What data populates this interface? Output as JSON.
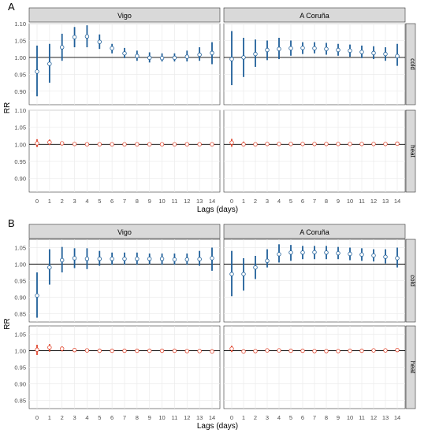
{
  "colors": {
    "cold": "#1f5f99",
    "heat": "#e0472f",
    "strip": "#d9d9d9",
    "grid": "#ebebeb",
    "ref": "#000000"
  },
  "labels": {
    "y_title": "RR",
    "x_title": "Lags (days)"
  },
  "chart_data": [
    {
      "type": "scatter",
      "panel_label": "A",
      "cities": [
        "Vigo",
        "A Coruña"
      ],
      "rows": [
        "cold",
        "heat"
      ],
      "xlabel": "Lags (days)",
      "ylabel": "RR",
      "x": [
        0,
        1,
        2,
        3,
        4,
        5,
        6,
        7,
        8,
        9,
        10,
        11,
        12,
        13,
        14
      ],
      "reference_line": 1.0,
      "grid": true,
      "ylim": [
        0.86,
        1.1
      ],
      "yticks": [
        0.9,
        0.95,
        1.0,
        1.05,
        1.1
      ],
      "ytick_labels": [
        "0.90",
        "0.95",
        "1.00",
        "1.05",
        "1.10"
      ],
      "series": [
        {
          "city": "Vigo",
          "row": "cold",
          "color": "cold",
          "rr": [
            0.958,
            0.981,
            1.03,
            1.06,
            1.062,
            1.046,
            1.027,
            1.012,
            1.004,
            0.999,
            0.998,
            0.999,
            1.002,
            1.008,
            1.013
          ],
          "low": [
            0.885,
            0.925,
            0.99,
            1.03,
            1.03,
            1.025,
            1.012,
            0.998,
            0.99,
            0.985,
            0.988,
            0.988,
            0.988,
            0.99,
            0.98
          ],
          "high": [
            1.035,
            1.04,
            1.07,
            1.09,
            1.095,
            1.068,
            1.04,
            1.028,
            1.02,
            1.015,
            1.012,
            1.012,
            1.02,
            1.03,
            1.045
          ]
        },
        {
          "city": "A Coruña",
          "row": "cold",
          "color": "cold",
          "rr": [
            0.995,
            1.0,
            1.01,
            1.022,
            1.025,
            1.027,
            1.028,
            1.027,
            1.025,
            1.022,
            1.02,
            1.016,
            1.013,
            1.01,
            1.004
          ],
          "low": [
            0.918,
            0.942,
            0.972,
            0.992,
            0.995,
            1.005,
            1.01,
            1.012,
            1.008,
            1.005,
            1.002,
            0.998,
            0.995,
            0.99,
            0.975
          ],
          "high": [
            1.078,
            1.058,
            1.053,
            1.05,
            1.058,
            1.05,
            1.045,
            1.045,
            1.043,
            1.04,
            1.038,
            1.035,
            1.033,
            1.03,
            1.04
          ]
        },
        {
          "city": "Vigo",
          "row": "heat",
          "color": "heat",
          "rr": [
            1.003,
            1.006,
            1.003,
            1.001,
            1.0,
            1.0,
            1.0,
            1.0,
            1.0,
            1.0,
            1.0,
            1.0,
            1.0,
            1.0,
            1.0
          ],
          "low": [
            0.992,
            0.998,
            0.998,
            0.998,
            0.998,
            0.998,
            0.998,
            0.998,
            0.998,
            0.998,
            0.998,
            0.998,
            0.998,
            0.998,
            0.997
          ],
          "high": [
            1.015,
            1.014,
            1.008,
            1.004,
            1.003,
            1.003,
            1.003,
            1.003,
            1.003,
            1.003,
            1.003,
            1.003,
            1.003,
            1.003,
            1.004
          ]
        },
        {
          "city": "A Coruña",
          "row": "heat",
          "color": "heat",
          "rr": [
            1.005,
            1.0,
            1.0,
            1.001,
            1.001,
            1.001,
            1.001,
            1.001,
            1.001,
            1.001,
            1.001,
            1.001,
            1.001,
            1.001,
            1.002
          ],
          "low": [
            0.993,
            0.994,
            0.996,
            0.998,
            0.998,
            0.998,
            0.998,
            0.998,
            0.998,
            0.998,
            0.998,
            0.998,
            0.998,
            0.998,
            0.998
          ],
          "high": [
            1.016,
            1.008,
            1.004,
            1.004,
            1.004,
            1.004,
            1.004,
            1.004,
            1.004,
            1.004,
            1.004,
            1.004,
            1.004,
            1.004,
            1.006
          ]
        }
      ]
    },
    {
      "type": "scatter",
      "panel_label": "B",
      "cities": [
        "Vigo",
        "A Coruña"
      ],
      "rows": [
        "cold",
        "heat"
      ],
      "xlabel": "Lags (days)",
      "ylabel": "RR",
      "x": [
        0,
        1,
        2,
        3,
        4,
        5,
        6,
        7,
        8,
        9,
        10,
        11,
        12,
        13,
        14
      ],
      "reference_line": 1.0,
      "grid": true,
      "ylim": [
        0.825,
        1.075
      ],
      "yticks": [
        0.85,
        0.9,
        0.95,
        1.0,
        1.05
      ],
      "ytick_labels": [
        "0.85",
        "0.90",
        "0.95",
        "1.00",
        "1.05"
      ],
      "series": [
        {
          "city": "Vigo",
          "row": "cold",
          "color": "cold",
          "rr": [
            0.905,
            0.99,
            1.012,
            1.018,
            1.016,
            1.016,
            1.016,
            1.016,
            1.016,
            1.016,
            1.016,
            1.014,
            1.014,
            1.015,
            1.018
          ],
          "low": [
            0.838,
            0.938,
            0.975,
            0.988,
            0.985,
            0.995,
            0.998,
            0.998,
            0.998,
            1.0,
            0.998,
            0.998,
            0.998,
            0.995,
            0.98
          ],
          "high": [
            0.975,
            1.045,
            1.052,
            1.048,
            1.048,
            1.04,
            1.035,
            1.035,
            1.035,
            1.032,
            1.032,
            1.032,
            1.032,
            1.04,
            1.05
          ]
        },
        {
          "city": "A Coruña",
          "row": "cold",
          "color": "cold",
          "rr": [
            0.97,
            0.97,
            0.99,
            1.01,
            1.03,
            1.035,
            1.035,
            1.036,
            1.035,
            1.033,
            1.031,
            1.029,
            1.026,
            1.022,
            1.018
          ],
          "low": [
            0.903,
            0.92,
            0.955,
            0.99,
            1.005,
            1.01,
            1.015,
            1.015,
            1.015,
            1.015,
            1.012,
            1.01,
            1.008,
            1.002,
            0.99
          ],
          "high": [
            1.04,
            1.018,
            1.025,
            1.045,
            1.06,
            1.058,
            1.055,
            1.055,
            1.055,
            1.052,
            1.05,
            1.048,
            1.045,
            1.045,
            1.05
          ]
        },
        {
          "city": "Vigo",
          "row": "heat",
          "color": "heat",
          "rr": [
            1.003,
            1.01,
            1.006,
            1.002,
            1.001,
            1.0,
            1.0,
            1.0,
            1.0,
            1.0,
            1.0,
            1.0,
            0.999,
            0.999,
            0.998
          ],
          "low": [
            0.987,
            0.997,
            0.998,
            0.996,
            0.995,
            0.996,
            0.996,
            0.996,
            0.997,
            0.997,
            0.997,
            0.996,
            0.996,
            0.995,
            0.993
          ],
          "high": [
            1.018,
            1.02,
            1.013,
            1.006,
            1.005,
            1.004,
            1.004,
            1.004,
            1.004,
            1.004,
            1.004,
            1.004,
            1.004,
            1.004,
            1.004
          ]
        },
        {
          "city": "A Coruña",
          "row": "heat",
          "color": "heat",
          "rr": [
            1.006,
            0.998,
            0.999,
            1.001,
            1.001,
            1.0,
            1.0,
            0.999,
            0.999,
            0.999,
            1.0,
            1.0,
            1.001,
            1.001,
            1.002
          ],
          "low": [
            0.996,
            0.993,
            0.995,
            0.997,
            0.997,
            0.996,
            0.996,
            0.995,
            0.995,
            0.995,
            0.996,
            0.996,
            0.997,
            0.997,
            0.997
          ],
          "high": [
            1.015,
            1.004,
            1.004,
            1.005,
            1.005,
            1.004,
            1.004,
            1.004,
            1.004,
            1.004,
            1.004,
            1.004,
            1.005,
            1.005,
            1.006
          ]
        }
      ]
    }
  ]
}
